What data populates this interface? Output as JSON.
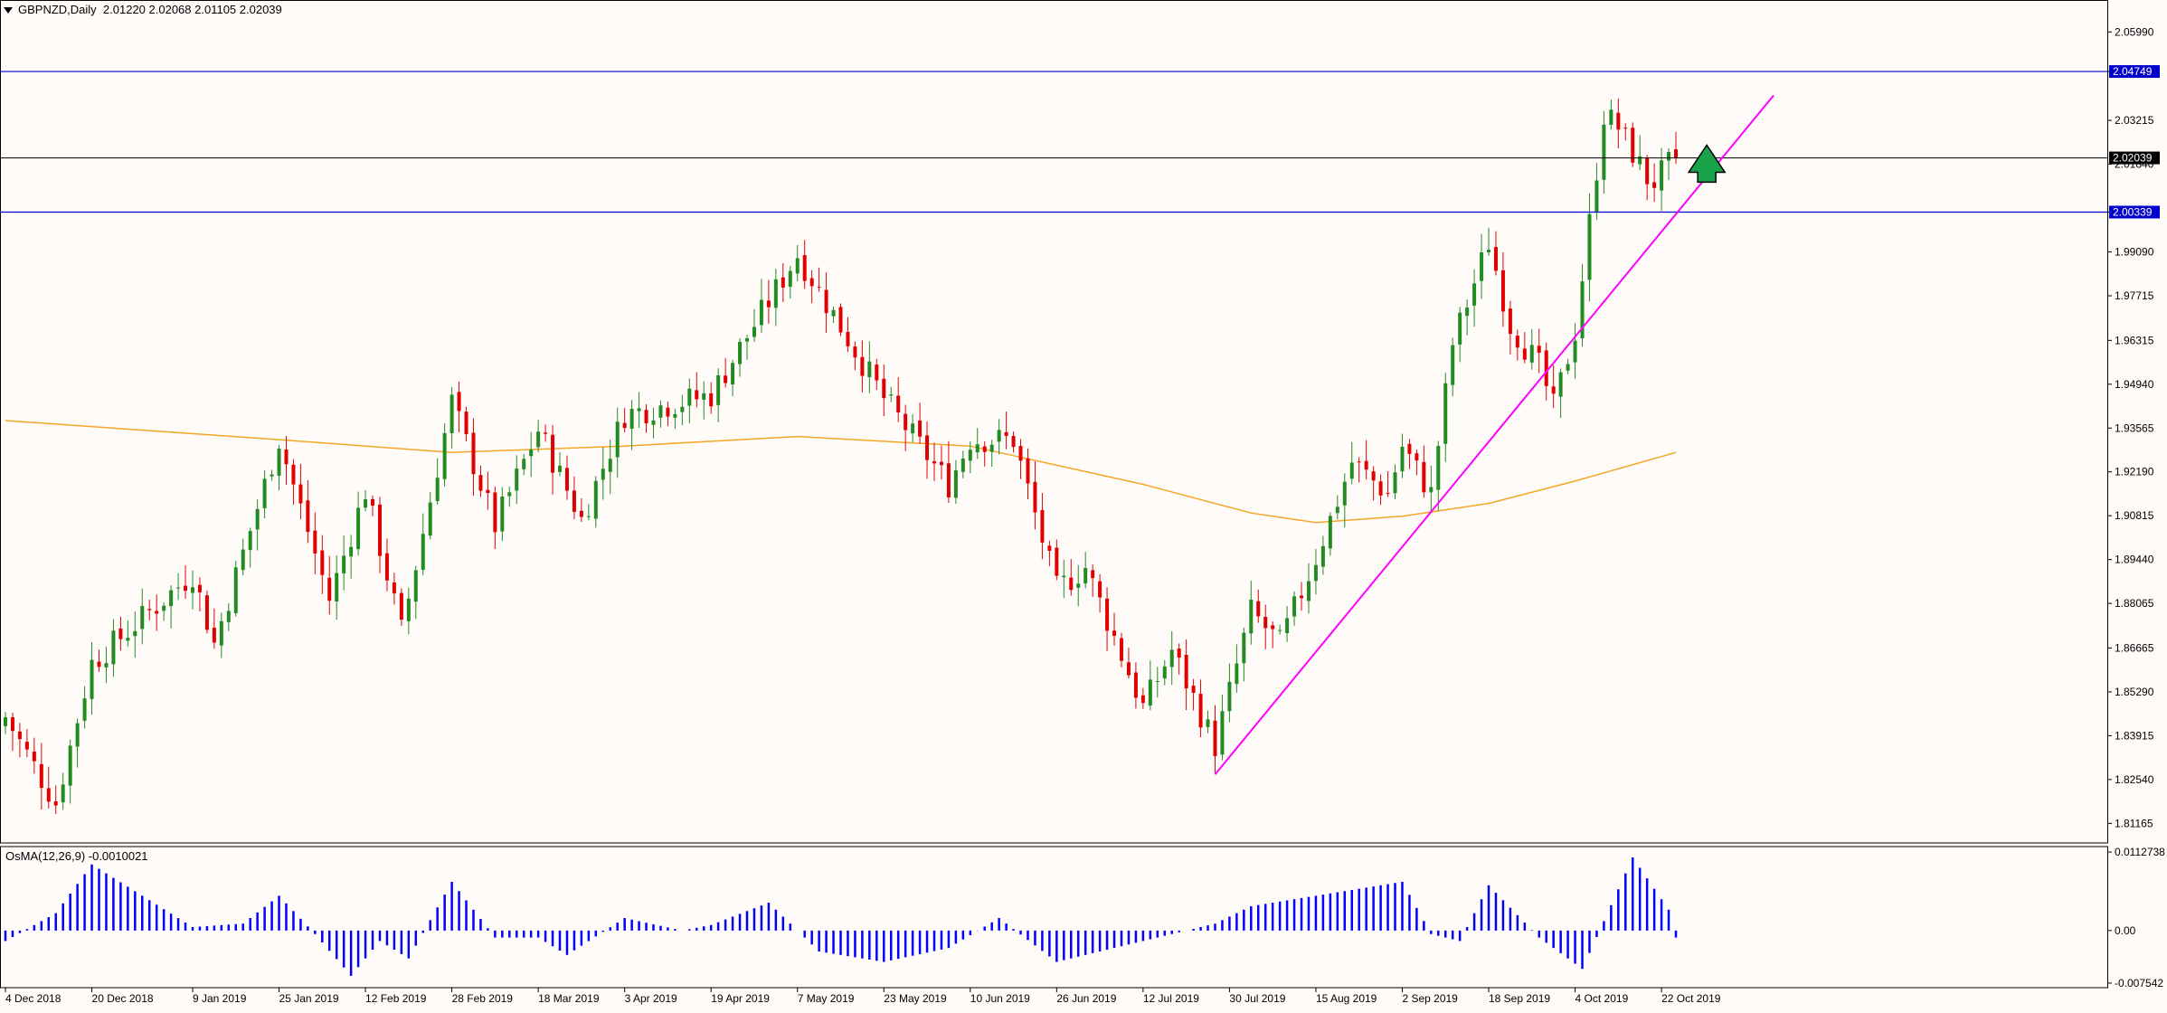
{
  "header": {
    "symbol": "GBPNZD,Daily",
    "ohlc": "2.01220 2.02068 2.01105 2.02039"
  },
  "osma": {
    "label": "OsMA(12,26,9) -0.0010021",
    "axis_labels": [
      "0.0112738",
      "0.00",
      "-0.007542"
    ]
  },
  "colors": {
    "background": "#fffbf9",
    "bull": "#228b22",
    "bear": "#e00000",
    "ma": "#f5a623",
    "trendline": "#ff00ff",
    "level_line": "#0000cc",
    "current_line": "#000000",
    "osma": "#0000ff",
    "arrow": "#1aa34a"
  },
  "chart_data": [
    {
      "type": "candlestick",
      "title": "GBPNZD,Daily",
      "ylim": [
        1.8055,
        2.0685
      ],
      "y_ticks": [
        "2.05990",
        "2.04749",
        "2.03215",
        "2.01840",
        "2.00339",
        "1.99090",
        "1.97715",
        "1.96315",
        "1.94940",
        "1.93565",
        "1.92190",
        "1.90815",
        "1.89440",
        "1.88065",
        "1.86665",
        "1.85290",
        "1.83915",
        "1.82540",
        "1.81165"
      ],
      "x_labels": [
        "4 Dec 2018",
        "20 Dec 2018",
        "9 Jan 2019",
        "25 Jan 2019",
        "12 Feb 2019",
        "28 Feb 2019",
        "18 Mar 2019",
        "3 Apr 2019",
        "19 Apr 2019",
        "7 May 2019",
        "23 May 2019",
        "10 Jun 2019",
        "26 Jun 2019",
        "12 Jul 2019",
        "30 Jul 2019",
        "15 Aug 2019",
        "2 Sep 2019",
        "18 Sep 2019",
        "4 Oct 2019",
        "22 Oct 2019"
      ],
      "levels": [
        {
          "value": 2.04749,
          "label": "2.04749"
        },
        {
          "value": 2.00339,
          "label": "2.00339"
        }
      ],
      "current_price": {
        "value": 2.02039,
        "label": "2.02039"
      },
      "anchors": [
        {
          "date": "4 Dec 2018",
          "close": 1.845
        },
        {
          "date": "13 Dec 2018",
          "close": 1.818
        },
        {
          "date": "20 Dec 2018",
          "close": 1.862
        },
        {
          "date": "9 Jan 2019",
          "close": 1.89
        },
        {
          "date": "14 Jan 2019",
          "close": 1.868
        },
        {
          "date": "25 Jan 2019",
          "close": 1.932
        },
        {
          "date": "5 Feb 2019",
          "close": 1.882
        },
        {
          "date": "12 Feb 2019",
          "close": 1.916
        },
        {
          "date": "19 Feb 2019",
          "close": 1.872
        },
        {
          "date": "28 Feb 2019",
          "close": 1.944
        },
        {
          "date": "8 Mar 2019",
          "close": 1.905
        },
        {
          "date": "18 Mar 2019",
          "close": 1.935
        },
        {
          "date": "26 Mar 2019",
          "close": 1.907
        },
        {
          "date": "3 Apr 2019",
          "close": 1.94
        },
        {
          "date": "19 Apr 2019",
          "close": 1.946
        },
        {
          "date": "7 May 2019",
          "close": 1.99
        },
        {
          "date": "23 May 2019",
          "close": 1.945
        },
        {
          "date": "5 Jun 2019",
          "close": 1.918
        },
        {
          "date": "10 Jun 2019",
          "close": 1.932
        },
        {
          "date": "18 Jun 2019",
          "close": 1.932
        },
        {
          "date": "26 Jun 2019",
          "close": 1.885
        },
        {
          "date": "2 Jul 2019",
          "close": 1.892
        },
        {
          "date": "12 Jul 2019",
          "close": 1.848
        },
        {
          "date": "18 Jul 2019",
          "close": 1.866
        },
        {
          "date": "26 Jul 2019",
          "close": 1.836
        },
        {
          "date": "2 Aug 2019",
          "close": 1.878
        },
        {
          "date": "8 Aug 2019",
          "close": 1.868
        },
        {
          "date": "15 Aug 2019",
          "close": 1.895
        },
        {
          "date": "22 Aug 2019",
          "close": 1.925
        },
        {
          "date": "29 Aug 2019",
          "close": 1.915
        },
        {
          "date": "2 Sep 2019",
          "close": 1.93
        },
        {
          "date": "6 Sep 2019",
          "close": 1.915
        },
        {
          "date": "11 Sep 2019",
          "close": 1.962
        },
        {
          "date": "18 Sep 2019",
          "close": 1.994
        },
        {
          "date": "23 Sep 2019",
          "close": 1.968
        },
        {
          "date": "27 Sep 2019",
          "close": 1.955
        },
        {
          "date": "1 Oct 2019",
          "close": 1.942
        },
        {
          "date": "4 Oct 2019",
          "close": 1.966
        },
        {
          "date": "10 Oct 2019",
          "close": 2.034
        },
        {
          "date": "14 Oct 2019",
          "close": 2.03
        },
        {
          "date": "18 Oct 2019",
          "close": 2.014
        },
        {
          "date": "21 Oct 2019",
          "close": 2.013
        },
        {
          "date": "24 Oct 2019",
          "close": 2.0204
        }
      ],
      "ma": [
        {
          "date": "4 Dec 2018",
          "value": 1.938
        },
        {
          "date": "25 Jan 2019",
          "value": 1.932
        },
        {
          "date": "28 Feb 2019",
          "value": 1.928
        },
        {
          "date": "3 Apr 2019",
          "value": 1.93
        },
        {
          "date": "7 May 2019",
          "value": 1.933
        },
        {
          "date": "10 Jun 2019",
          "value": 1.93
        },
        {
          "date": "12 Jul 2019",
          "value": 1.918
        },
        {
          "date": "2 Aug 2019",
          "value": 1.909
        },
        {
          "date": "15 Aug 2019",
          "value": 1.906
        },
        {
          "date": "2 Sep 2019",
          "value": 1.908
        },
        {
          "date": "18 Sep 2019",
          "value": 1.912
        },
        {
          "date": "4 Oct 2019",
          "value": 1.919
        },
        {
          "date": "24 Oct 2019",
          "value": 1.928
        }
      ],
      "trendline": [
        {
          "date": "26 Jul 2019",
          "value": 1.827
        },
        {
          "date": "12 Nov 2019",
          "value": 2.04
        }
      ],
      "arrow": {
        "direction": "up",
        "date": "30 Oct 2019",
        "from": 2.0128,
        "to": 2.0244
      }
    },
    {
      "type": "bar",
      "title": "OsMA(12,26,9)",
      "ylim": [
        -0.0082,
        0.0118
      ],
      "y_ticks": [
        0.0112738,
        0.0,
        -0.007542
      ],
      "anchors": [
        {
          "date": "4 Dec 2018",
          "value": -0.0015
        },
        {
          "date": "13 Dec 2018",
          "value": 0.0025
        },
        {
          "date": "20 Dec 2018",
          "value": 0.0095
        },
        {
          "date": "9 Jan 2019",
          "value": 0.0005
        },
        {
          "date": "18 Jan 2019",
          "value": 0.001
        },
        {
          "date": "25 Jan 2019",
          "value": 0.005
        },
        {
          "date": "1 Feb 2019",
          "value": -0.0005
        },
        {
          "date": "8 Feb 2019",
          "value": -0.0065
        },
        {
          "date": "14 Feb 2019",
          "value": -0.0015
        },
        {
          "date": "20 Feb 2019",
          "value": -0.004
        },
        {
          "date": "28 Feb 2019",
          "value": 0.007
        },
        {
          "date": "8 Mar 2019",
          "value": -0.001
        },
        {
          "date": "18 Mar 2019",
          "value": -0.001
        },
        {
          "date": "22 Mar 2019",
          "value": -0.0035
        },
        {
          "date": "3 Apr 2019",
          "value": 0.0018
        },
        {
          "date": "15 Apr 2019",
          "value": 0.0
        },
        {
          "date": "19 Apr 2019",
          "value": 0.0008
        },
        {
          "date": "1 May 2019",
          "value": 0.004
        },
        {
          "date": "10 May 2019",
          "value": -0.003
        },
        {
          "date": "23 May 2019",
          "value": -0.0045
        },
        {
          "date": "5 Jun 2019",
          "value": -0.0025
        },
        {
          "date": "14 Jun 2019",
          "value": 0.0018
        },
        {
          "date": "26 Jun 2019",
          "value": -0.0045
        },
        {
          "date": "12 Jul 2019",
          "value": -0.0015
        },
        {
          "date": "26 Jul 2019",
          "value": 0.001
        },
        {
          "date": "2 Aug 2019",
          "value": 0.0035
        },
        {
          "date": "15 Aug 2019",
          "value": 0.005
        },
        {
          "date": "2 Sep 2019",
          "value": 0.007
        },
        {
          "date": "6 Sep 2019",
          "value": -0.0005
        },
        {
          "date": "12 Sep 2019",
          "value": -0.0015
        },
        {
          "date": "18 Sep 2019",
          "value": 0.0065
        },
        {
          "date": "27 Sep 2019",
          "value": -0.001
        },
        {
          "date": "7 Oct 2019",
          "value": -0.0055
        },
        {
          "date": "16 Oct 2019",
          "value": 0.0105
        },
        {
          "date": "23 Oct 2019",
          "value": 0.003
        },
        {
          "date": "24 Oct 2019",
          "value": -0.001
        }
      ]
    }
  ]
}
